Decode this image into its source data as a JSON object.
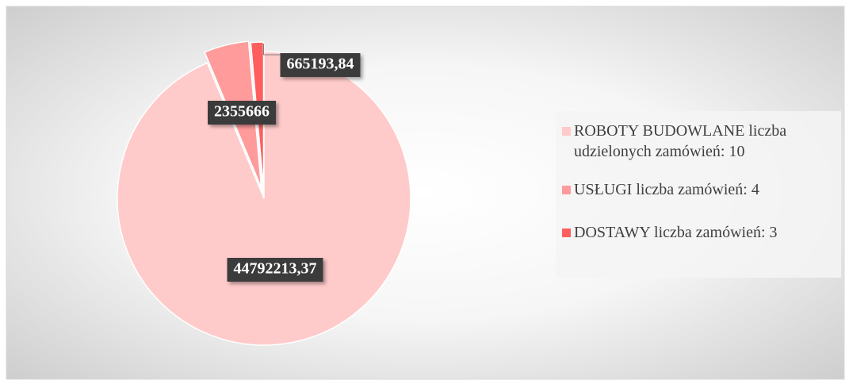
{
  "chart_data": {
    "type": "pie",
    "categories": [
      "ROBOTY BUDOWLANE liczba udzielonych zamówień: 10",
      "USŁUGI liczba zamówień: 4",
      "DOSTAWY liczba zamówień: 3"
    ],
    "values": [
      44792213.37,
      2355666,
      665193.84
    ],
    "value_labels": [
      "44792213,37",
      "2355666",
      "665193,84"
    ],
    "colors": [
      "#ffcaca",
      "#ff9b9b",
      "#ff5e5e"
    ],
    "legend": "right"
  }
}
